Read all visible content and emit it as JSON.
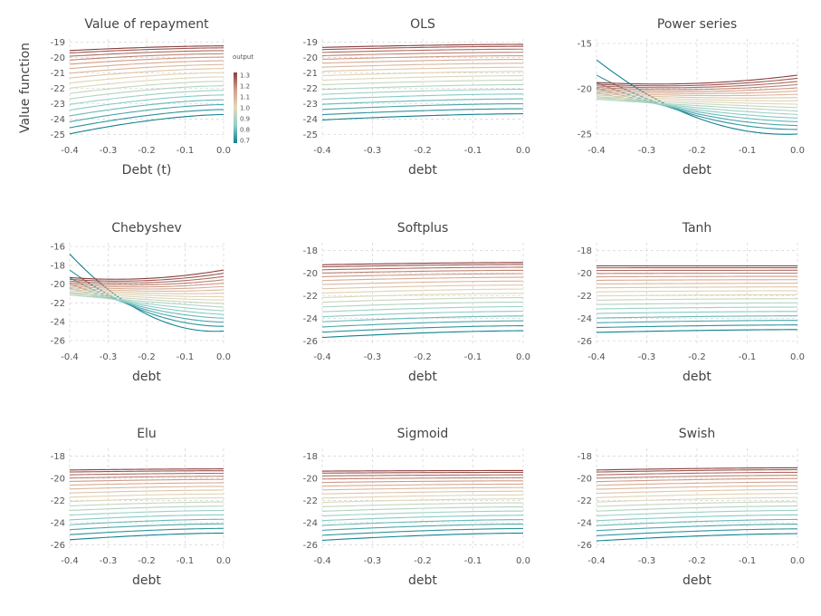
{
  "figure": {
    "ylabel": "Value function",
    "legend": {
      "title": "output",
      "ticks": [
        "1.3",
        "1.2",
        "1.1",
        "1.0",
        "0.9",
        "0.8",
        "0.7"
      ],
      "range": [
        0.7,
        1.3
      ],
      "colors": [
        "#10818f",
        "#8ecfc8",
        "#e3d9b8",
        "#d4a08a",
        "#8a3e3e"
      ]
    }
  },
  "chart_data": [
    {
      "type": "line",
      "title": "Value of repayment",
      "xlabel": "Debt (t)",
      "xticks": [
        "-0.4",
        "-0.3",
        "-0.2",
        "-0.1",
        "0.0"
      ],
      "xlim": [
        -0.4,
        0.0
      ],
      "yticks": [
        "-19",
        "-20",
        "-21",
        "-22",
        "-23",
        "-24",
        "-25"
      ],
      "ytick_values": [
        -19,
        -20,
        -21,
        -22,
        -23,
        -24,
        -25
      ],
      "ylim": [
        -25.2,
        -18.8
      ],
      "series_count": 18,
      "family": "flat",
      "top": [
        -19.55,
        -19.25
      ],
      "bottom": [
        -24.95,
        -23.7
      ]
    },
    {
      "type": "line",
      "title": "OLS",
      "xlabel": "debt",
      "xticks": [
        "-0.4",
        "-0.3",
        "-0.2",
        "-0.1",
        "0.0"
      ],
      "xlim": [
        -0.4,
        0.0
      ],
      "yticks": [
        "-19",
        "-20",
        "-21",
        "-22",
        "-23",
        "-24",
        "-25"
      ],
      "ytick_values": [
        -19,
        -20,
        -21,
        -22,
        -23,
        -24,
        -25
      ],
      "ylim": [
        -25.2,
        -18.8
      ],
      "series_count": 18,
      "family": "flat",
      "top": [
        -19.35,
        -19.15
      ],
      "bottom": [
        -24.05,
        -23.65
      ]
    },
    {
      "type": "line",
      "title": "Power series",
      "xlabel": "debt",
      "xticks": [
        "-0.4",
        "-0.3",
        "-0.2",
        "-0.1",
        "0.0"
      ],
      "xlim": [
        -0.4,
        0.0
      ],
      "yticks": [
        "-15",
        "-20",
        "-25"
      ],
      "ytick_values": [
        -15,
        -20,
        -25
      ],
      "ylim": [
        -25.4,
        -14.5
      ],
      "series_count": 18,
      "family": "cross",
      "top_start": -19.5,
      "top_end": -18.5,
      "bottom_start": -16.8,
      "bottom_end": -25.0,
      "top_mid": -19.4,
      "bottom_mid": -23.2,
      "lowcluster_start": -21.8,
      "highcluster_start": -19.3
    },
    {
      "type": "line",
      "title": "Chebyshev",
      "xlabel": "debt",
      "xticks": [
        "-0.4",
        "-0.3",
        "-0.2",
        "-0.1",
        "0.0"
      ],
      "xlim": [
        -0.4,
        0.0
      ],
      "yticks": [
        "-16",
        "-18",
        "-20",
        "-22",
        "-24",
        "-26"
      ],
      "ytick_values": [
        -16,
        -18,
        -20,
        -22,
        -24,
        -26
      ],
      "ylim": [
        -26.4,
        -15.6
      ],
      "series_count": 18,
      "family": "cross",
      "top_start": -19.5,
      "top_end": -18.5,
      "bottom_start": -16.8,
      "bottom_end": -25.0,
      "top_mid": -19.4,
      "bottom_mid": -23.2,
      "lowcluster_start": -21.8,
      "highcluster_start": -19.3
    },
    {
      "type": "line",
      "title": "Softplus",
      "xlabel": "debt",
      "xticks": [
        "-0.4",
        "-0.3",
        "-0.2",
        "-0.1",
        "0.0"
      ],
      "xlim": [
        -0.4,
        0.0
      ],
      "yticks": [
        "-18",
        "-20",
        "-22",
        "-24",
        "-26"
      ],
      "ytick_values": [
        -18,
        -20,
        -22,
        -24,
        -26
      ],
      "ylim": [
        -26.3,
        -17.3
      ],
      "series_count": 18,
      "family": "flat",
      "top": [
        -19.25,
        -19.05
      ],
      "bottom": [
        -25.7,
        -25.1
      ]
    },
    {
      "type": "line",
      "title": "Tanh",
      "xlabel": "debt",
      "xticks": [
        "-0.4",
        "-0.3",
        "-0.2",
        "-0.1",
        "0.0"
      ],
      "xlim": [
        -0.4,
        0.0
      ],
      "yticks": [
        "-18",
        "-20",
        "-22",
        "-24",
        "-26"
      ],
      "ytick_values": [
        -18,
        -20,
        -22,
        -24,
        -26
      ],
      "ylim": [
        -26.3,
        -17.3
      ],
      "series_count": 18,
      "family": "flat",
      "top": [
        -19.35,
        -19.35
      ],
      "bottom": [
        -25.25,
        -25.0
      ]
    },
    {
      "type": "line",
      "title": "Elu",
      "xlabel": "debt",
      "xticks": [
        "-0.4",
        "-0.3",
        "-0.2",
        "-0.1",
        "0.0"
      ],
      "xlim": [
        -0.4,
        0.0
      ],
      "yticks": [
        "-18",
        "-20",
        "-22",
        "-24",
        "-26"
      ],
      "ytick_values": [
        -18,
        -20,
        -22,
        -24,
        -26
      ],
      "ylim": [
        -26.3,
        -17.3
      ],
      "series_count": 18,
      "family": "flat",
      "top": [
        -19.25,
        -19.15
      ],
      "bottom": [
        -25.55,
        -24.95
      ]
    },
    {
      "type": "line",
      "title": "Sigmoid",
      "xlabel": "debt",
      "xticks": [
        "-0.4",
        "-0.3",
        "-0.2",
        "-0.1",
        "0.0"
      ],
      "xlim": [
        -0.4,
        0.0
      ],
      "yticks": [
        "-18",
        "-20",
        "-22",
        "-24",
        "-26"
      ],
      "ytick_values": [
        -18,
        -20,
        -22,
        -24,
        -26
      ],
      "ylim": [
        -26.3,
        -17.3
      ],
      "series_count": 18,
      "family": "flat",
      "top": [
        -19.35,
        -19.3
      ],
      "bottom": [
        -25.6,
        -24.95
      ]
    },
    {
      "type": "line",
      "title": "Swish",
      "xlabel": "debt",
      "xticks": [
        "-0.4",
        "-0.3",
        "-0.2",
        "-0.1",
        "0.0"
      ],
      "xlim": [
        -0.4,
        0.0
      ],
      "yticks": [
        "-18",
        "-20",
        "-22",
        "-24",
        "-26"
      ],
      "ytick_values": [
        -18,
        -20,
        -22,
        -24,
        -26
      ],
      "ylim": [
        -26.3,
        -17.3
      ],
      "series_count": 18,
      "family": "flat",
      "top": [
        -19.25,
        -19.05
      ],
      "bottom": [
        -25.65,
        -25.0
      ]
    }
  ]
}
